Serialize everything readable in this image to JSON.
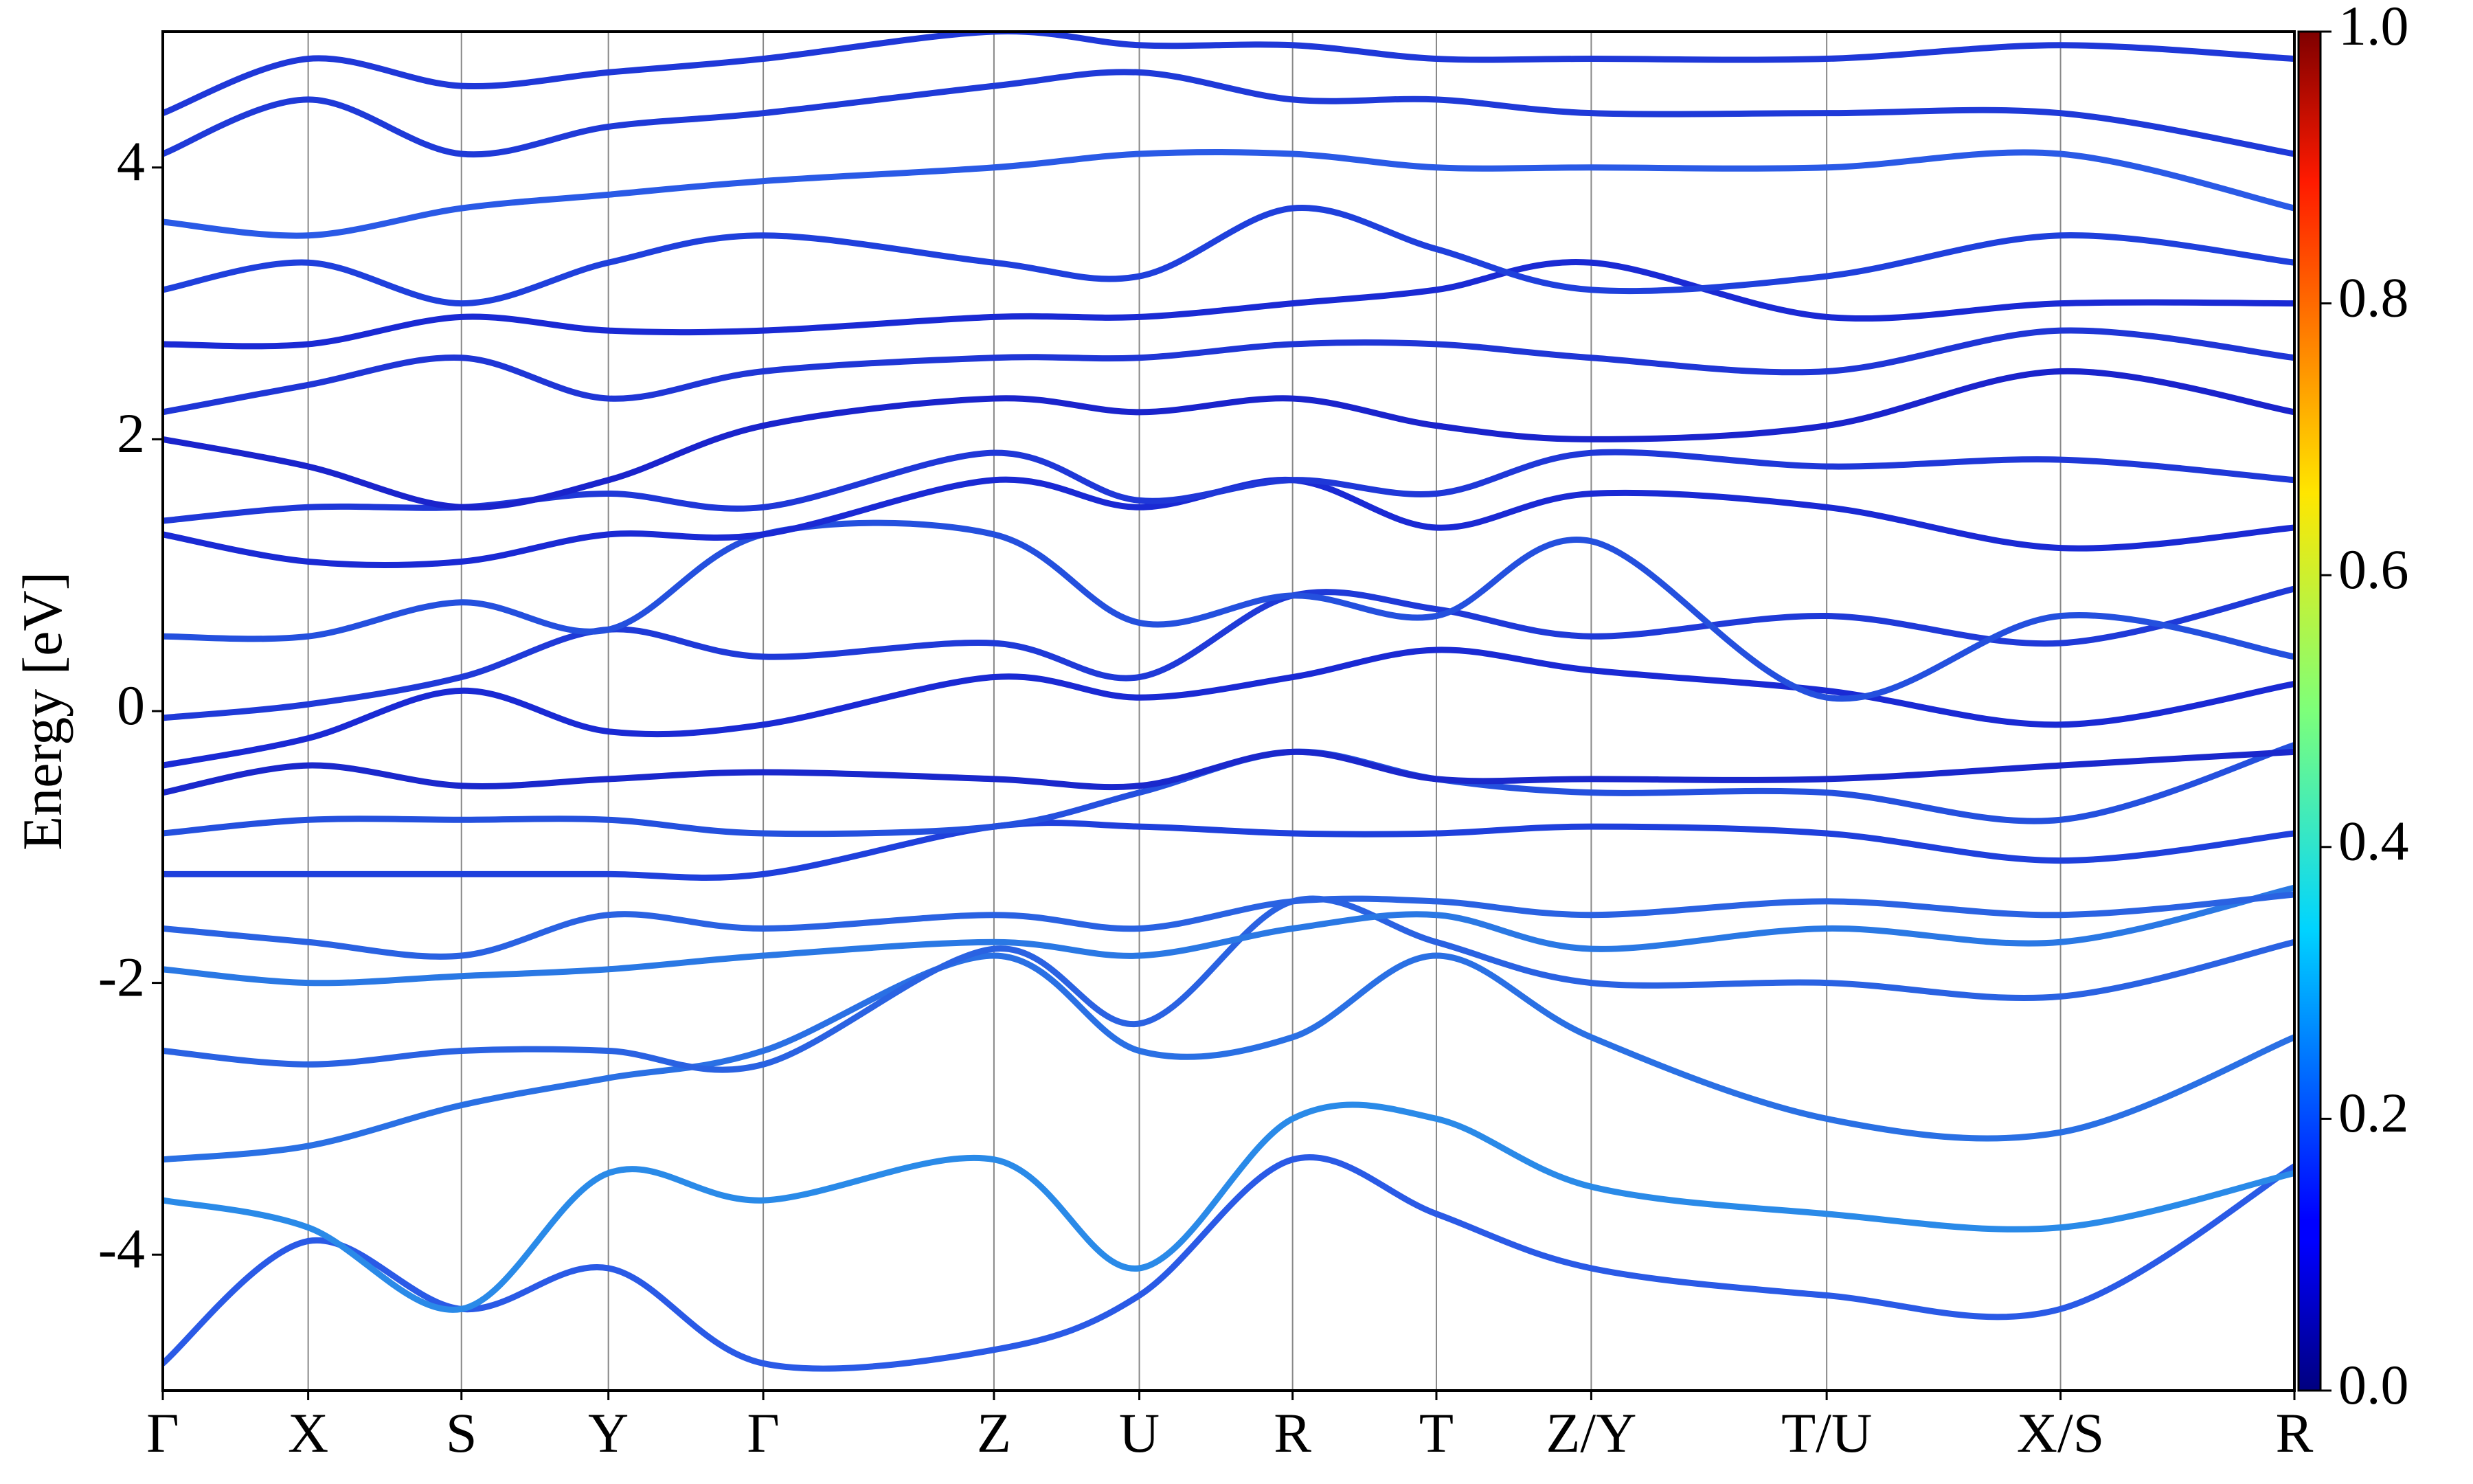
{
  "chart_data": {
    "type": "line",
    "y_label": "Energy [eV]",
    "x": [
      0,
      0.92,
      1.89,
      2.82,
      3.8,
      5.26,
      6.18,
      7.15,
      8.06,
      9.04,
      10.53,
      12.01,
      13.49
    ],
    "xlim": [
      0,
      13.49
    ],
    "xticks": [
      {
        "value": 0,
        "label": "Γ"
      },
      {
        "value": 0.92,
        "label": "X"
      },
      {
        "value": 1.89,
        "label": "S"
      },
      {
        "value": 2.82,
        "label": "Y"
      },
      {
        "value": 3.8,
        "label": "Γ"
      },
      {
        "value": 5.26,
        "label": "Z"
      },
      {
        "value": 6.18,
        "label": "U"
      },
      {
        "value": 7.15,
        "label": "R"
      },
      {
        "value": 8.06,
        "label": "T"
      },
      {
        "value": 9.04,
        "label": "Z/Y"
      },
      {
        "value": 10.53,
        "label": "T/U"
      },
      {
        "value": 12.01,
        "label": "X/S"
      },
      {
        "value": 13.49,
        "label": "R"
      }
    ],
    "ylim": [
      -5,
      5
    ],
    "yticks": [
      -4,
      -2,
      0,
      2,
      4
    ],
    "colorbar": {
      "lim": [
        0,
        1
      ],
      "ticks": [
        {
          "value": 0,
          "label": "0.0"
        },
        0.2,
        0.4,
        0.6,
        0.8,
        {
          "value": 1,
          "label": "1.0"
        }
      ]
    },
    "series": [
      {
        "color": "#2a5ae6",
        "values": [
          -4.8,
          -3.9,
          -4.4,
          -4.1,
          -4.8,
          -4.7,
          -4.3,
          -3.3,
          -3.7,
          -4.1,
          -4.3,
          -4.4,
          -3.35
        ]
      },
      {
        "color": "#2a8ae8",
        "values": [
          -3.6,
          -3.8,
          -4.4,
          -3.4,
          -3.6,
          -3.3,
          -4.1,
          -3.0,
          -3.0,
          -3.5,
          -3.7,
          -3.8,
          -3.4
        ]
      },
      {
        "color": "#2a70e4",
        "values": [
          -3.3,
          -3.2,
          -2.9,
          -2.7,
          -2.5,
          -1.8,
          -2.5,
          -2.4,
          -1.8,
          -2.4,
          -3.0,
          -3.1,
          -2.4
        ]
      },
      {
        "color": "#2a62e2",
        "values": [
          -2.5,
          -2.6,
          -2.5,
          -2.5,
          -2.6,
          -1.75,
          -2.3,
          -1.4,
          -1.7,
          -2.0,
          -2.0,
          -2.1,
          -1.7
        ]
      },
      {
        "color": "#2a78e4",
        "values": [
          -1.9,
          -2.0,
          -1.95,
          -1.9,
          -1.8,
          -1.7,
          -1.8,
          -1.6,
          -1.5,
          -1.75,
          -1.6,
          -1.7,
          -1.3
        ]
      },
      {
        "color": "#2a62e2",
        "values": [
          -1.6,
          -1.7,
          -1.8,
          -1.5,
          -1.6,
          -1.5,
          -1.6,
          -1.4,
          -1.4,
          -1.5,
          -1.4,
          -1.5,
          -1.35
        ]
      },
      {
        "color": "#1f40dc",
        "values": [
          -1.2,
          -1.2,
          -1.2,
          -1.2,
          -1.2,
          -0.85,
          -0.85,
          -0.9,
          -0.9,
          -0.85,
          -0.9,
          -1.1,
          -0.9
        ]
      },
      {
        "color": "#2450de",
        "values": [
          -0.9,
          -0.8,
          -0.8,
          -0.8,
          -0.9,
          -0.85,
          -0.6,
          -0.3,
          -0.5,
          -0.6,
          -0.6,
          -0.8,
          -0.25
        ]
      },
      {
        "color": "#1a28cc",
        "values": [
          -0.6,
          -0.4,
          -0.55,
          -0.5,
          -0.45,
          -0.5,
          -0.55,
          -0.3,
          -0.5,
          -0.5,
          -0.5,
          -0.4,
          -0.3
        ]
      },
      {
        "color": "#1a2ad4",
        "values": [
          -0.4,
          -0.2,
          0.15,
          -0.15,
          -0.1,
          0.25,
          0.1,
          0.25,
          0.45,
          0.3,
          0.15,
          -0.1,
          0.2
        ]
      },
      {
        "color": "#1f3ad8",
        "values": [
          -0.05,
          0.05,
          0.25,
          0.6,
          0.4,
          0.5,
          0.25,
          0.85,
          0.75,
          0.55,
          0.7,
          0.5,
          0.9
        ]
      },
      {
        "color": "#2450de",
        "values": [
          0.55,
          0.55,
          0.8,
          0.6,
          1.3,
          1.3,
          0.65,
          0.85,
          0.7,
          1.25,
          0.1,
          0.7,
          0.4
        ]
      },
      {
        "color": "#1a2ad4",
        "values": [
          1.3,
          1.1,
          1.1,
          1.3,
          1.3,
          1.7,
          1.5,
          1.7,
          1.35,
          1.6,
          1.5,
          1.2,
          1.35
        ]
      },
      {
        "color": "#1f38d8",
        "values": [
          1.4,
          1.5,
          1.5,
          1.6,
          1.5,
          1.9,
          1.55,
          1.7,
          1.6,
          1.9,
          1.8,
          1.85,
          1.7
        ]
      },
      {
        "color": "#1a24cc",
        "values": [
          2.0,
          1.8,
          1.5,
          1.7,
          2.1,
          2.3,
          2.2,
          2.3,
          2.1,
          2.0,
          2.1,
          2.5,
          2.2
        ]
      },
      {
        "color": "#1f36d6",
        "values": [
          2.2,
          2.4,
          2.6,
          2.3,
          2.5,
          2.6,
          2.6,
          2.7,
          2.7,
          2.6,
          2.5,
          2.8,
          2.6
        ]
      },
      {
        "color": "#1a2ad4",
        "values": [
          2.7,
          2.7,
          2.9,
          2.8,
          2.8,
          2.9,
          2.9,
          3.0,
          3.1,
          3.3,
          2.9,
          3.0,
          3.0
        ]
      },
      {
        "color": "#1f40dc",
        "values": [
          3.1,
          3.3,
          3.0,
          3.3,
          3.5,
          3.3,
          3.2,
          3.7,
          3.4,
          3.1,
          3.2,
          3.5,
          3.3
        ]
      },
      {
        "color": "#2a5ae6",
        "values": [
          3.6,
          3.5,
          3.7,
          3.8,
          3.9,
          4.0,
          4.1,
          4.1,
          4.0,
          4.0,
          4.0,
          4.1,
          3.7
        ]
      },
      {
        "color": "#1f3ad8",
        "values": [
          4.1,
          4.5,
          4.1,
          4.3,
          4.4,
          4.6,
          4.7,
          4.5,
          4.5,
          4.4,
          4.4,
          4.4,
          4.1
        ]
      },
      {
        "color": "#1f38d8",
        "values": [
          4.4,
          4.8,
          4.6,
          4.7,
          4.8,
          5.0,
          4.9,
          4.9,
          4.8,
          4.8,
          4.8,
          4.9,
          4.8
        ]
      }
    ]
  }
}
